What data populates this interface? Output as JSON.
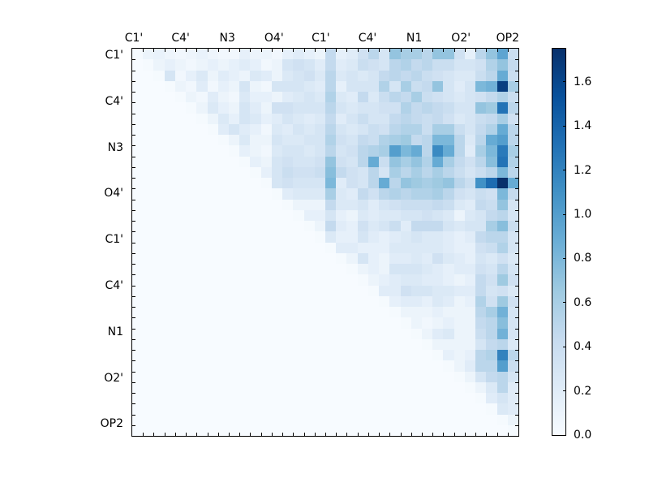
{
  "figure": {
    "background": "#ffffff",
    "border_color": "#000000",
    "text_color": "#000000"
  },
  "chart_data": {
    "type": "heatmap",
    "title": "",
    "xlabel": "",
    "ylabel": "",
    "n": 36,
    "vmin": 0.0,
    "vmax": 1.75,
    "grid": false,
    "legend_position": "right-colorbar",
    "x_tick_labels": [
      "C1'",
      "C4'",
      "N3",
      "O4'",
      "C1'",
      "C4'",
      "N1",
      "O2'",
      "OP2"
    ],
    "y_tick_labels": [
      "C1'",
      "C4'",
      "N3",
      "O4'",
      "C1'",
      "C4'",
      "N1",
      "O2'",
      "OP2"
    ],
    "colorbar": {
      "ticks": [
        0.0,
        0.2,
        0.4,
        0.6,
        0.8,
        1.0,
        1.2,
        1.4,
        1.6
      ],
      "tick_labels": [
        "0.0",
        "0.2",
        "0.4",
        "0.6",
        "0.8",
        "1.0",
        "1.2",
        "1.4",
        "1.6"
      ]
    },
    "colormap": "Blues",
    "colormap_stops": [
      [
        0.0,
        "#f7fbff"
      ],
      [
        0.125,
        "#deebf7"
      ],
      [
        0.25,
        "#c6dbef"
      ],
      [
        0.375,
        "#9ecae1"
      ],
      [
        0.5,
        "#6baed6"
      ],
      [
        0.625,
        "#4292c6"
      ],
      [
        0.75,
        "#2171b5"
      ],
      [
        0.875,
        "#08519c"
      ],
      [
        1.0,
        "#08306b"
      ]
    ],
    "matrix": [
      [
        0.02,
        0.1,
        0.12,
        0.08,
        0.05,
        0.08,
        0.12,
        0.08,
        0.05,
        0.05,
        0.15,
        0.1,
        0.1,
        0.05,
        0.15,
        0.2,
        0.15,
        0.1,
        0.45,
        0.15,
        0.2,
        0.35,
        0.5,
        0.3,
        0.7,
        0.6,
        0.6,
        0.5,
        0.7,
        0.7,
        0.35,
        0.15,
        0.5,
        0.7,
        0.95,
        0.4
      ],
      [
        0,
        0.02,
        0.1,
        0.15,
        0.1,
        0.05,
        0.1,
        0.15,
        0.1,
        0.15,
        0.2,
        0.15,
        0.05,
        0.1,
        0.3,
        0.35,
        0.3,
        0.2,
        0.45,
        0.2,
        0.25,
        0.4,
        0.35,
        0.3,
        0.5,
        0.55,
        0.45,
        0.5,
        0.4,
        0.4,
        0.3,
        0.3,
        0.35,
        0.55,
        0.7,
        0.45
      ],
      [
        0,
        0,
        0.02,
        0.3,
        0.05,
        0.15,
        0.25,
        0.1,
        0.2,
        0.15,
        0.1,
        0.25,
        0.2,
        0.1,
        0.25,
        0.3,
        0.35,
        0.25,
        0.5,
        0.25,
        0.3,
        0.25,
        0.3,
        0.45,
        0.5,
        0.45,
        0.5,
        0.4,
        0.35,
        0.3,
        0.25,
        0.25,
        0.4,
        0.5,
        0.9,
        0.4
      ],
      [
        0,
        0,
        0,
        0.02,
        0.1,
        0.05,
        0.2,
        0.05,
        0.15,
        0.1,
        0.3,
        0.1,
        0.05,
        0.3,
        0.3,
        0.3,
        0.25,
        0.2,
        0.5,
        0.15,
        0.3,
        0.3,
        0.3,
        0.55,
        0.3,
        0.6,
        0.4,
        0.45,
        0.7,
        0.3,
        0.2,
        0.3,
        0.8,
        0.85,
        1.65,
        0.6
      ],
      [
        0,
        0,
        0,
        0,
        0.02,
        0.1,
        0.05,
        0.2,
        0.1,
        0.05,
        0.25,
        0.15,
        0.15,
        0.1,
        0.2,
        0.25,
        0.3,
        0.25,
        0.55,
        0.25,
        0.2,
        0.45,
        0.25,
        0.4,
        0.5,
        0.45,
        0.6,
        0.4,
        0.35,
        0.3,
        0.25,
        0.3,
        0.35,
        0.45,
        0.55,
        0.4
      ],
      [
        0,
        0,
        0,
        0,
        0,
        0.02,
        0.1,
        0.25,
        0.15,
        0.1,
        0.3,
        0.2,
        0.1,
        0.35,
        0.35,
        0.3,
        0.3,
        0.3,
        0.5,
        0.3,
        0.25,
        0.3,
        0.3,
        0.35,
        0.35,
        0.55,
        0.45,
        0.5,
        0.45,
        0.4,
        0.3,
        0.3,
        0.7,
        0.65,
        1.3,
        0.5
      ],
      [
        0,
        0,
        0,
        0,
        0,
        0,
        0.02,
        0.1,
        0.25,
        0.15,
        0.3,
        0.25,
        0.15,
        0.2,
        0.3,
        0.25,
        0.2,
        0.25,
        0.45,
        0.2,
        0.3,
        0.4,
        0.3,
        0.3,
        0.45,
        0.5,
        0.45,
        0.4,
        0.45,
        0.35,
        0.25,
        0.3,
        0.4,
        0.45,
        0.6,
        0.35
      ],
      [
        0,
        0,
        0,
        0,
        0,
        0,
        0,
        0.02,
        0.2,
        0.3,
        0.2,
        0.15,
        0.05,
        0.25,
        0.2,
        0.3,
        0.25,
        0.3,
        0.5,
        0.3,
        0.25,
        0.3,
        0.4,
        0.35,
        0.5,
        0.55,
        0.55,
        0.4,
        0.6,
        0.6,
        0.4,
        0.3,
        0.45,
        0.55,
        0.9,
        0.5
      ],
      [
        0,
        0,
        0,
        0,
        0,
        0,
        0,
        0,
        0.02,
        0.1,
        0.25,
        0.1,
        0.1,
        0.3,
        0.25,
        0.25,
        0.3,
        0.3,
        0.55,
        0.35,
        0.3,
        0.45,
        0.4,
        0.55,
        0.6,
        0.65,
        0.45,
        0.5,
        0.8,
        0.8,
        0.5,
        0.25,
        0.5,
        0.9,
        1.0,
        0.5
      ],
      [
        0,
        0,
        0,
        0,
        0,
        0,
        0,
        0,
        0,
        0.02,
        0.15,
        0.1,
        0.05,
        0.25,
        0.3,
        0.3,
        0.25,
        0.3,
        0.5,
        0.3,
        0.35,
        0.5,
        0.55,
        0.6,
        1.0,
        0.8,
        0.9,
        0.5,
        1.15,
        0.9,
        0.5,
        0.2,
        0.6,
        0.8,
        1.25,
        0.6
      ],
      [
        0,
        0,
        0,
        0,
        0,
        0,
        0,
        0,
        0,
        0,
        0.02,
        0.15,
        0.1,
        0.3,
        0.35,
        0.3,
        0.3,
        0.35,
        0.7,
        0.35,
        0.3,
        0.5,
        0.9,
        0.4,
        0.7,
        0.6,
        0.7,
        0.55,
        0.9,
        0.6,
        0.45,
        0.35,
        0.5,
        0.75,
        1.3,
        0.55
      ],
      [
        0,
        0,
        0,
        0,
        0,
        0,
        0,
        0,
        0,
        0,
        0,
        0.02,
        0.15,
        0.3,
        0.4,
        0.35,
        0.35,
        0.4,
        0.75,
        0.45,
        0.35,
        0.3,
        0.5,
        0.3,
        0.6,
        0.5,
        0.6,
        0.5,
        0.6,
        0.5,
        0.4,
        0.3,
        0.4,
        0.5,
        0.8,
        0.5
      ],
      [
        0,
        0,
        0,
        0,
        0,
        0,
        0,
        0,
        0,
        0,
        0,
        0,
        0.02,
        0.3,
        0.35,
        0.3,
        0.3,
        0.3,
        0.8,
        0.2,
        0.35,
        0.3,
        0.5,
        0.9,
        0.5,
        0.7,
        0.65,
        0.6,
        0.65,
        0.7,
        0.5,
        0.4,
        1.1,
        1.35,
        1.75,
        0.9
      ],
      [
        0,
        0,
        0,
        0,
        0,
        0,
        0,
        0,
        0,
        0,
        0,
        0,
        0,
        0.02,
        0.2,
        0.25,
        0.25,
        0.25,
        0.6,
        0.25,
        0.2,
        0.45,
        0.35,
        0.5,
        0.55,
        0.5,
        0.55,
        0.55,
        0.6,
        0.5,
        0.35,
        0.3,
        0.4,
        0.35,
        0.8,
        0.45
      ],
      [
        0,
        0,
        0,
        0,
        0,
        0,
        0,
        0,
        0,
        0,
        0,
        0,
        0,
        0,
        0.02,
        0.1,
        0.1,
        0.1,
        0.45,
        0.25,
        0.25,
        0.3,
        0.2,
        0.3,
        0.35,
        0.4,
        0.4,
        0.4,
        0.45,
        0.4,
        0.25,
        0.2,
        0.45,
        0.4,
        0.7,
        0.3
      ],
      [
        0,
        0,
        0,
        0,
        0,
        0,
        0,
        0,
        0,
        0,
        0,
        0,
        0,
        0,
        0,
        0.02,
        0.15,
        0.15,
        0.3,
        0.15,
        0.1,
        0.25,
        0.2,
        0.25,
        0.25,
        0.3,
        0.3,
        0.35,
        0.3,
        0.25,
        0.1,
        0.25,
        0.3,
        0.45,
        0.5,
        0.3
      ],
      [
        0,
        0,
        0,
        0,
        0,
        0,
        0,
        0,
        0,
        0,
        0,
        0,
        0,
        0,
        0,
        0,
        0.02,
        0.1,
        0.45,
        0.2,
        0.15,
        0.35,
        0.25,
        0.3,
        0.4,
        0.2,
        0.45,
        0.45,
        0.45,
        0.3,
        0.25,
        0.3,
        0.3,
        0.6,
        0.75,
        0.4
      ],
      [
        0,
        0,
        0,
        0,
        0,
        0,
        0,
        0,
        0,
        0,
        0,
        0,
        0,
        0,
        0,
        0,
        0,
        0.02,
        0.25,
        0.15,
        0.15,
        0.3,
        0.2,
        0.15,
        0.2,
        0.25,
        0.3,
        0.25,
        0.25,
        0.2,
        0.15,
        0.2,
        0.45,
        0.5,
        0.5,
        0.3
      ],
      [
        0,
        0,
        0,
        0,
        0,
        0,
        0,
        0,
        0,
        0,
        0,
        0,
        0,
        0,
        0,
        0,
        0,
        0,
        0.02,
        0.2,
        0.2,
        0.15,
        0.15,
        0.15,
        0.25,
        0.25,
        0.25,
        0.25,
        0.25,
        0.2,
        0.15,
        0.15,
        0.35,
        0.4,
        0.55,
        0.3
      ],
      [
        0,
        0,
        0,
        0,
        0,
        0,
        0,
        0,
        0,
        0,
        0,
        0,
        0,
        0,
        0,
        0,
        0,
        0,
        0,
        0.02,
        0.1,
        0.3,
        0.15,
        0.1,
        0.2,
        0.2,
        0.25,
        0.2,
        0.35,
        0.25,
        0.2,
        0.15,
        0.3,
        0.25,
        0.35,
        0.25
      ],
      [
        0,
        0,
        0,
        0,
        0,
        0,
        0,
        0,
        0,
        0,
        0,
        0,
        0,
        0,
        0,
        0,
        0,
        0,
        0,
        0,
        0.02,
        0.1,
        0.15,
        0.1,
        0.3,
        0.3,
        0.3,
        0.25,
        0.2,
        0.15,
        0.2,
        0.2,
        0.35,
        0.3,
        0.5,
        0.3
      ],
      [
        0,
        0,
        0,
        0,
        0,
        0,
        0,
        0,
        0,
        0,
        0,
        0,
        0,
        0,
        0,
        0,
        0,
        0,
        0,
        0,
        0,
        0.02,
        0.1,
        0.15,
        0.2,
        0.25,
        0.25,
        0.2,
        0.2,
        0.15,
        0.1,
        0.15,
        0.45,
        0.35,
        0.65,
        0.35
      ],
      [
        0,
        0,
        0,
        0,
        0,
        0,
        0,
        0,
        0,
        0,
        0,
        0,
        0,
        0,
        0,
        0,
        0,
        0,
        0,
        0,
        0,
        0,
        0.02,
        0.2,
        0.2,
        0.35,
        0.3,
        0.3,
        0.25,
        0.25,
        0.2,
        0.2,
        0.45,
        0.3,
        0.35,
        0.25
      ],
      [
        0,
        0,
        0,
        0,
        0,
        0,
        0,
        0,
        0,
        0,
        0,
        0,
        0,
        0,
        0,
        0,
        0,
        0,
        0,
        0,
        0,
        0,
        0,
        0.02,
        0.15,
        0.2,
        0.2,
        0.15,
        0.25,
        0.2,
        0.1,
        0.15,
        0.55,
        0.35,
        0.65,
        0.35
      ],
      [
        0,
        0,
        0,
        0,
        0,
        0,
        0,
        0,
        0,
        0,
        0,
        0,
        0,
        0,
        0,
        0,
        0,
        0,
        0,
        0,
        0,
        0,
        0,
        0,
        0.02,
        0.1,
        0.1,
        0.1,
        0.15,
        0.1,
        0.1,
        0.1,
        0.5,
        0.6,
        0.85,
        0.3
      ],
      [
        0,
        0,
        0,
        0,
        0,
        0,
        0,
        0,
        0,
        0,
        0,
        0,
        0,
        0,
        0,
        0,
        0,
        0,
        0,
        0,
        0,
        0,
        0,
        0,
        0,
        0.02,
        0.1,
        0.05,
        0.1,
        0.15,
        0.1,
        0.1,
        0.45,
        0.5,
        0.75,
        0.3
      ],
      [
        0,
        0,
        0,
        0,
        0,
        0,
        0,
        0,
        0,
        0,
        0,
        0,
        0,
        0,
        0,
        0,
        0,
        0,
        0,
        0,
        0,
        0,
        0,
        0,
        0,
        0,
        0.02,
        0.1,
        0.2,
        0.25,
        0.1,
        0.1,
        0.4,
        0.5,
        0.85,
        0.3
      ],
      [
        0,
        0,
        0,
        0,
        0,
        0,
        0,
        0,
        0,
        0,
        0,
        0,
        0,
        0,
        0,
        0,
        0,
        0,
        0,
        0,
        0,
        0,
        0,
        0,
        0,
        0,
        0,
        0.02,
        0.1,
        0.1,
        0.1,
        0.1,
        0.3,
        0.45,
        0.5,
        0.25
      ],
      [
        0,
        0,
        0,
        0,
        0,
        0,
        0,
        0,
        0,
        0,
        0,
        0,
        0,
        0,
        0,
        0,
        0,
        0,
        0,
        0,
        0,
        0,
        0,
        0,
        0,
        0,
        0,
        0,
        0.02,
        0.15,
        0.1,
        0.15,
        0.5,
        0.55,
        1.2,
        0.5
      ],
      [
        0,
        0,
        0,
        0,
        0,
        0,
        0,
        0,
        0,
        0,
        0,
        0,
        0,
        0,
        0,
        0,
        0,
        0,
        0,
        0,
        0,
        0,
        0,
        0,
        0,
        0,
        0,
        0,
        0,
        0.02,
        0.1,
        0.2,
        0.5,
        0.5,
        1.0,
        0.4
      ],
      [
        0,
        0,
        0,
        0,
        0,
        0,
        0,
        0,
        0,
        0,
        0,
        0,
        0,
        0,
        0,
        0,
        0,
        0,
        0,
        0,
        0,
        0,
        0,
        0,
        0,
        0,
        0,
        0,
        0,
        0,
        0.02,
        0.1,
        0.3,
        0.45,
        0.5,
        0.3
      ],
      [
        0,
        0,
        0,
        0,
        0,
        0,
        0,
        0,
        0,
        0,
        0,
        0,
        0,
        0,
        0,
        0,
        0,
        0,
        0,
        0,
        0,
        0,
        0,
        0,
        0,
        0,
        0,
        0,
        0,
        0,
        0,
        0.02,
        0.1,
        0.25,
        0.5,
        0.2
      ],
      [
        0,
        0,
        0,
        0,
        0,
        0,
        0,
        0,
        0,
        0,
        0,
        0,
        0,
        0,
        0,
        0,
        0,
        0,
        0,
        0,
        0,
        0,
        0,
        0,
        0,
        0,
        0,
        0,
        0,
        0,
        0,
        0,
        0.02,
        0.2,
        0.3,
        0.2
      ],
      [
        0,
        0,
        0,
        0,
        0,
        0,
        0,
        0,
        0,
        0,
        0,
        0,
        0,
        0,
        0,
        0,
        0,
        0,
        0,
        0,
        0,
        0,
        0,
        0,
        0,
        0,
        0,
        0,
        0,
        0,
        0,
        0,
        0,
        0.02,
        0.25,
        0.2
      ],
      [
        0,
        0,
        0,
        0,
        0,
        0,
        0,
        0,
        0,
        0,
        0,
        0,
        0,
        0,
        0,
        0,
        0,
        0,
        0,
        0,
        0,
        0,
        0,
        0,
        0,
        0,
        0,
        0,
        0,
        0,
        0,
        0,
        0,
        0,
        0.02,
        0.1
      ],
      [
        0,
        0,
        0,
        0,
        0,
        0,
        0,
        0,
        0,
        0,
        0,
        0,
        0,
        0,
        0,
        0,
        0,
        0,
        0,
        0,
        0,
        0,
        0,
        0,
        0,
        0,
        0,
        0,
        0,
        0,
        0,
        0,
        0,
        0,
        0,
        0.02
      ]
    ]
  }
}
